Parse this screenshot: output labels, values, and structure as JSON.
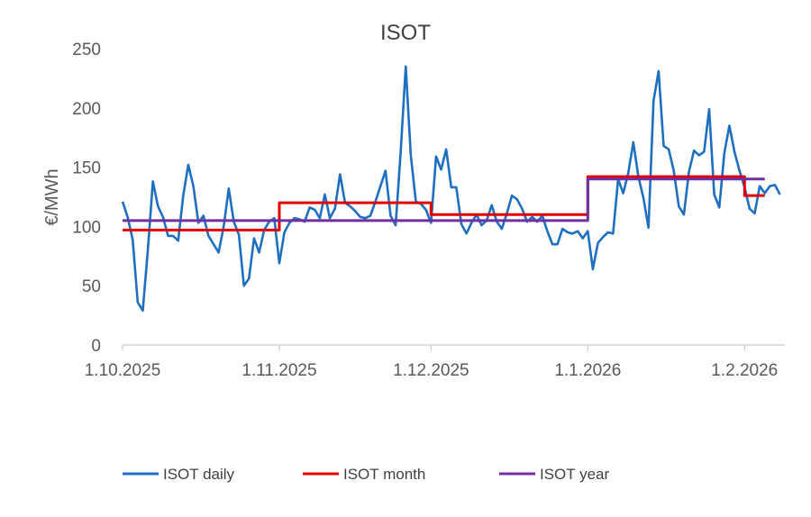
{
  "chart_data": {
    "type": "line",
    "title": "ISOT",
    "ylabel": "€/MWh",
    "xlabel": "",
    "ylim": [
      0,
      250
    ],
    "ytick_values": [
      0,
      50,
      100,
      150,
      200,
      250
    ],
    "ytick_labels": [
      "0",
      "50",
      "100",
      "150",
      "200",
      "250"
    ],
    "x_start": "1.10.2025",
    "x_days": 131,
    "xticks": [
      {
        "day": 0,
        "label": "1.10.2025"
      },
      {
        "day": 31,
        "label": "1.11.2025"
      },
      {
        "day": 61,
        "label": "1.12.2025"
      },
      {
        "day": 92,
        "label": "1.1.2026"
      },
      {
        "day": 123,
        "label": "1.2.2026"
      }
    ],
    "grid": false,
    "legend_position": "bottom",
    "series": [
      {
        "name": "ISOT daily",
        "color": "#1f6fc0",
        "day_offset": 0,
        "values": [
          121,
          108,
          89,
          36,
          29,
          80,
          138,
          117,
          108,
          92,
          92,
          88,
          126,
          152,
          134,
          103,
          109,
          92,
          85,
          78,
          100,
          132,
          104,
          93,
          50,
          56,
          90,
          78,
          97,
          104,
          107,
          69,
          95,
          103,
          107,
          106,
          104,
          116,
          114,
          107,
          127,
          107,
          115,
          144,
          120,
          117,
          113,
          108,
          107,
          109,
          121,
          134,
          147,
          109,
          101,
          163,
          235,
          160,
          121,
          119,
          114,
          103,
          159,
          148,
          165,
          133,
          133,
          102,
          94,
          103,
          110,
          101,
          105,
          118,
          104,
          98,
          111,
          126,
          123,
          115,
          104,
          108,
          104,
          109,
          96,
          85,
          85,
          98,
          95,
          94,
          96,
          90,
          96,
          64,
          86,
          91,
          95,
          94,
          140,
          128,
          145,
          171,
          142,
          124,
          99,
          206,
          231,
          168,
          165,
          147,
          117,
          110,
          146,
          164,
          160,
          163,
          199,
          127,
          116,
          162,
          185,
          163,
          147,
          133,
          115,
          111,
          134,
          128,
          134,
          135,
          127
        ]
      },
      {
        "name": "ISOT month",
        "color": "#e00000",
        "segments": [
          {
            "from": 0,
            "to": 31,
            "value": 97
          },
          {
            "from": 31,
            "to": 61,
            "value": 120
          },
          {
            "from": 61,
            "to": 92,
            "value": 110
          },
          {
            "from": 92,
            "to": 123,
            "value": 142
          },
          {
            "from": 123,
            "to": 127,
            "value": 126
          }
        ]
      },
      {
        "name": "ISOT year",
        "color": "#7030a0",
        "segments": [
          {
            "from": 0,
            "to": 92,
            "value": 105
          },
          {
            "from": 92,
            "to": 127,
            "value": 140
          }
        ]
      }
    ]
  }
}
